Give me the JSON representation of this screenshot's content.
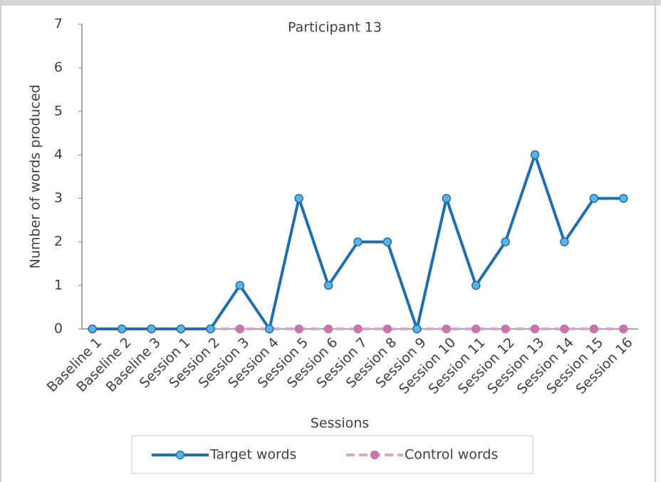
{
  "chart_data": {
    "type": "line",
    "title": "Participant 13",
    "x_label": "Sessions",
    "y_label": "Number of words produced",
    "categories": [
      "Baseline 1",
      "Baseline 2",
      "Baseline 3",
      "Session 1",
      "Session 2",
      "Session 3",
      "Session 4",
      "Session 5",
      "Session 6",
      "Session 7",
      "Session 8",
      "Session 9",
      "Session 10",
      "Session 11",
      "Session 12",
      "Session 13",
      "Session 14",
      "Session 15",
      "Session 16"
    ],
    "series": [
      {
        "name": "Target words",
        "color": "#1f6fb0",
        "marker_color": "#5bb4e5",
        "dashed": false,
        "values": [
          0,
          0,
          0,
          0,
          0,
          1,
          0,
          3,
          1,
          2,
          2,
          0,
          3,
          1,
          2,
          4,
          2,
          3,
          3
        ]
      },
      {
        "name": "Control words",
        "color": "#dba6cd",
        "marker_color": "#c874ad",
        "dashed": true,
        "values": [
          0,
          0,
          0,
          0,
          0,
          0,
          0,
          0,
          0,
          0,
          0,
          0,
          0,
          0,
          0,
          0,
          0,
          0,
          0
        ]
      }
    ],
    "ylim": [
      0,
      7
    ],
    "yticks": [
      0,
      1,
      2,
      3,
      4,
      5,
      6,
      7
    ],
    "grid": false,
    "legend": "bottom"
  }
}
